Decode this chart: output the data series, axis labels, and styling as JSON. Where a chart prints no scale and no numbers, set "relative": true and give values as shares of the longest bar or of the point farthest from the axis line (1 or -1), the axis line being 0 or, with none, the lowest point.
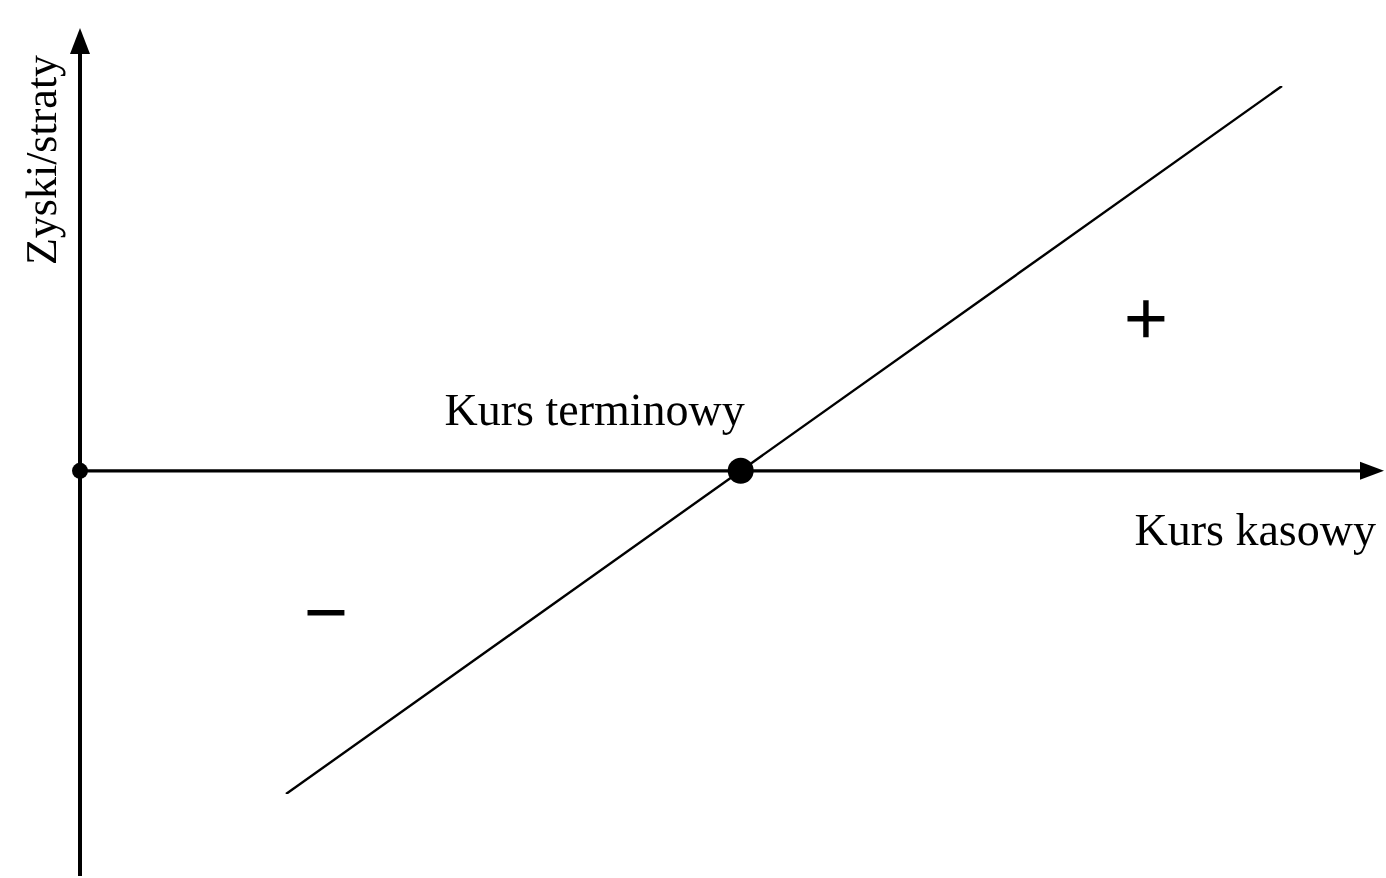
{
  "chart_data": {
    "type": "line",
    "relative": true,
    "xlabel": "Kurs kasowy",
    "ylabel": "Zyski/straty",
    "categories": [
      null,
      null
    ],
    "series": [
      {
        "color": "#000000",
        "values": [
          -0.84,
          1
        ]
      }
    ],
    "marker": "none",
    "line_style": "solid",
    "annotations": [
      "Kurs terminowy",
      "+",
      "−"
    ]
  }
}
